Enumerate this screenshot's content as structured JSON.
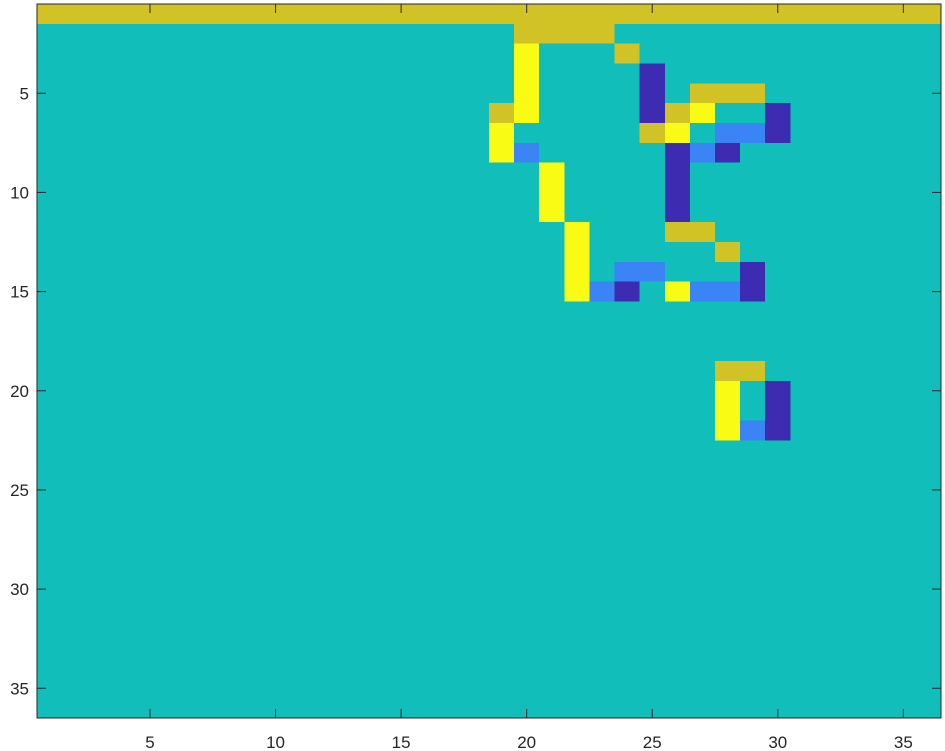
{
  "chart_data": {
    "type": "heatmap",
    "title": "",
    "xlabel": "",
    "ylabel": "",
    "xlim": [
      0.5,
      36.5
    ],
    "ylim": [
      0.5,
      36.5
    ],
    "y_reversed": true,
    "grid": false,
    "x_ticks": [
      "5",
      "10",
      "15",
      "20",
      "25",
      "30",
      "35"
    ],
    "y_ticks": [
      "5",
      "10",
      "15",
      "20",
      "25",
      "30",
      "35"
    ],
    "x_tick_values": [
      5,
      10,
      15,
      20,
      25,
      30,
      35
    ],
    "y_tick_values": [
      5,
      10,
      15,
      20,
      25,
      30,
      35
    ],
    "colormap": {
      "bg": "#12BEB9",
      "gold": "#D1C225",
      "yellow": "#F9FB15",
      "blue": "#3B84F5",
      "navy": "#3D2CB2"
    },
    "background_value": "bg",
    "cells": [
      {
        "row": 1,
        "col_start": 1,
        "col_end": 36,
        "value": "gold"
      },
      {
        "row": 2,
        "col_start": 20,
        "col_end": 23,
        "value": "gold"
      },
      {
        "row": 3,
        "col_start": 20,
        "col_end": 20,
        "value": "yellow"
      },
      {
        "row": 3,
        "col_start": 24,
        "col_end": 24,
        "value": "gold"
      },
      {
        "row": 4,
        "col_start": 20,
        "col_end": 20,
        "value": "yellow"
      },
      {
        "row": 4,
        "col_start": 25,
        "col_end": 25,
        "value": "navy"
      },
      {
        "row": 5,
        "col_start": 20,
        "col_end": 20,
        "value": "yellow"
      },
      {
        "row": 5,
        "col_start": 25,
        "col_end": 25,
        "value": "navy"
      },
      {
        "row": 5,
        "col_start": 27,
        "col_end": 29,
        "value": "gold"
      },
      {
        "row": 6,
        "col_start": 19,
        "col_end": 19,
        "value": "gold"
      },
      {
        "row": 6,
        "col_start": 20,
        "col_end": 20,
        "value": "yellow"
      },
      {
        "row": 6,
        "col_start": 25,
        "col_end": 25,
        "value": "navy"
      },
      {
        "row": 6,
        "col_start": 26,
        "col_end": 26,
        "value": "gold"
      },
      {
        "row": 6,
        "col_start": 27,
        "col_end": 27,
        "value": "yellow"
      },
      {
        "row": 6,
        "col_start": 30,
        "col_end": 30,
        "value": "navy"
      },
      {
        "row": 7,
        "col_start": 19,
        "col_end": 19,
        "value": "yellow"
      },
      {
        "row": 7,
        "col_start": 25,
        "col_end": 25,
        "value": "gold"
      },
      {
        "row": 7,
        "col_start": 26,
        "col_end": 26,
        "value": "yellow"
      },
      {
        "row": 7,
        "col_start": 28,
        "col_end": 29,
        "value": "blue"
      },
      {
        "row": 7,
        "col_start": 30,
        "col_end": 30,
        "value": "navy"
      },
      {
        "row": 8,
        "col_start": 19,
        "col_end": 19,
        "value": "yellow"
      },
      {
        "row": 8,
        "col_start": 20,
        "col_end": 20,
        "value": "blue"
      },
      {
        "row": 8,
        "col_start": 26,
        "col_end": 26,
        "value": "navy"
      },
      {
        "row": 8,
        "col_start": 27,
        "col_end": 27,
        "value": "blue"
      },
      {
        "row": 8,
        "col_start": 28,
        "col_end": 28,
        "value": "navy"
      },
      {
        "row": 9,
        "col_start": 21,
        "col_end": 21,
        "value": "yellow"
      },
      {
        "row": 9,
        "col_start": 26,
        "col_end": 26,
        "value": "navy"
      },
      {
        "row": 10,
        "col_start": 21,
        "col_end": 21,
        "value": "yellow"
      },
      {
        "row": 10,
        "col_start": 26,
        "col_end": 26,
        "value": "navy"
      },
      {
        "row": 11,
        "col_start": 21,
        "col_end": 21,
        "value": "yellow"
      },
      {
        "row": 11,
        "col_start": 26,
        "col_end": 26,
        "value": "navy"
      },
      {
        "row": 12,
        "col_start": 22,
        "col_end": 22,
        "value": "yellow"
      },
      {
        "row": 12,
        "col_start": 26,
        "col_end": 27,
        "value": "gold"
      },
      {
        "row": 13,
        "col_start": 22,
        "col_end": 22,
        "value": "yellow"
      },
      {
        "row": 13,
        "col_start": 28,
        "col_end": 28,
        "value": "gold"
      },
      {
        "row": 14,
        "col_start": 22,
        "col_end": 22,
        "value": "yellow"
      },
      {
        "row": 14,
        "col_start": 24,
        "col_end": 25,
        "value": "blue"
      },
      {
        "row": 14,
        "col_start": 29,
        "col_end": 29,
        "value": "navy"
      },
      {
        "row": 15,
        "col_start": 22,
        "col_end": 22,
        "value": "yellow"
      },
      {
        "row": 15,
        "col_start": 23,
        "col_end": 23,
        "value": "blue"
      },
      {
        "row": 15,
        "col_start": 24,
        "col_end": 24,
        "value": "navy"
      },
      {
        "row": 15,
        "col_start": 26,
        "col_end": 26,
        "value": "yellow"
      },
      {
        "row": 15,
        "col_start": 27,
        "col_end": 28,
        "value": "blue"
      },
      {
        "row": 15,
        "col_start": 29,
        "col_end": 29,
        "value": "navy"
      },
      {
        "row": 19,
        "col_start": 28,
        "col_end": 29,
        "value": "gold"
      },
      {
        "row": 20,
        "col_start": 28,
        "col_end": 28,
        "value": "yellow"
      },
      {
        "row": 20,
        "col_start": 30,
        "col_end": 30,
        "value": "navy"
      },
      {
        "row": 21,
        "col_start": 28,
        "col_end": 28,
        "value": "yellow"
      },
      {
        "row": 21,
        "col_start": 30,
        "col_end": 30,
        "value": "navy"
      },
      {
        "row": 22,
        "col_start": 28,
        "col_end": 28,
        "value": "yellow"
      },
      {
        "row": 22,
        "col_start": 29,
        "col_end": 29,
        "value": "blue"
      },
      {
        "row": 22,
        "col_start": 30,
        "col_end": 30,
        "value": "navy"
      }
    ]
  }
}
